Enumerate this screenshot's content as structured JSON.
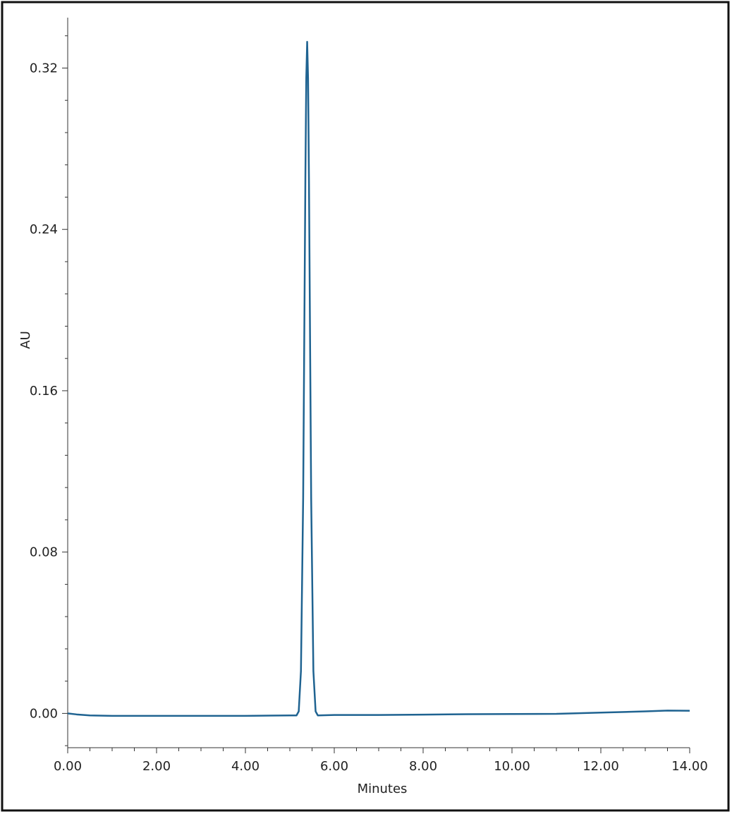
{
  "chart_data": {
    "type": "line",
    "x_label": "Minutes",
    "y_label": "AU",
    "x": [
      0,
      0.2,
      0.5,
      1.0,
      1.5,
      2.0,
      3.0,
      4.0,
      5.0,
      5.15,
      5.2,
      5.25,
      5.3,
      5.35,
      5.37,
      5.39,
      5.41,
      5.43,
      5.48,
      5.53,
      5.58,
      5.63,
      6.0,
      7.0,
      8.0,
      9.0,
      10.0,
      11.0,
      12.0,
      13.0,
      13.5,
      14.0
    ],
    "series": [
      {
        "color": "#1f6391",
        "values": [
          0.0,
          -0.0005,
          -0.001,
          -0.0012,
          -0.0012,
          -0.0012,
          -0.0012,
          -0.0012,
          -0.001,
          -0.001,
          0.001,
          0.021,
          0.107,
          0.266,
          0.315,
          0.333,
          0.315,
          0.266,
          0.107,
          0.021,
          0.001,
          -0.001,
          -0.0008,
          -0.0008,
          -0.0006,
          -0.0004,
          -0.0003,
          -0.0002,
          0.0004,
          0.001,
          0.0014,
          0.0013
        ]
      }
    ],
    "xlim": [
      0,
      14
    ],
    "ylim": [
      -0.017,
      0.345
    ],
    "xticks": [
      {
        "value": 0,
        "label": "0.00"
      },
      {
        "value": 2,
        "label": "2.00"
      },
      {
        "value": 4,
        "label": "4.00"
      },
      {
        "value": 6,
        "label": "6.00"
      },
      {
        "value": 8,
        "label": "8.00"
      },
      {
        "value": 10,
        "label": "10.00"
      },
      {
        "value": 12,
        "label": "12.00"
      },
      {
        "value": 14,
        "label": "14.00"
      }
    ],
    "yticks": [
      {
        "value": 0,
        "label": "0.00"
      },
      0.08,
      0.16,
      0.24,
      0.32
    ],
    "x_minor_ticks": [
      0.5,
      1,
      1.5,
      2.5,
      3,
      3.5,
      4.5,
      5,
      5.5,
      6.5,
      7,
      7.5,
      8.5,
      9,
      9.5,
      10.5,
      11,
      11.5,
      12.5,
      13,
      13.5
    ],
    "y_minor_ticks": [
      -0.016,
      0.016,
      0.032,
      0.048,
      0.064,
      0.096,
      0.112,
      0.128,
      0.144,
      0.176,
      0.192,
      0.208,
      0.224,
      0.256,
      0.272,
      0.288,
      0.304,
      0.336
    ],
    "grid": false
  }
}
